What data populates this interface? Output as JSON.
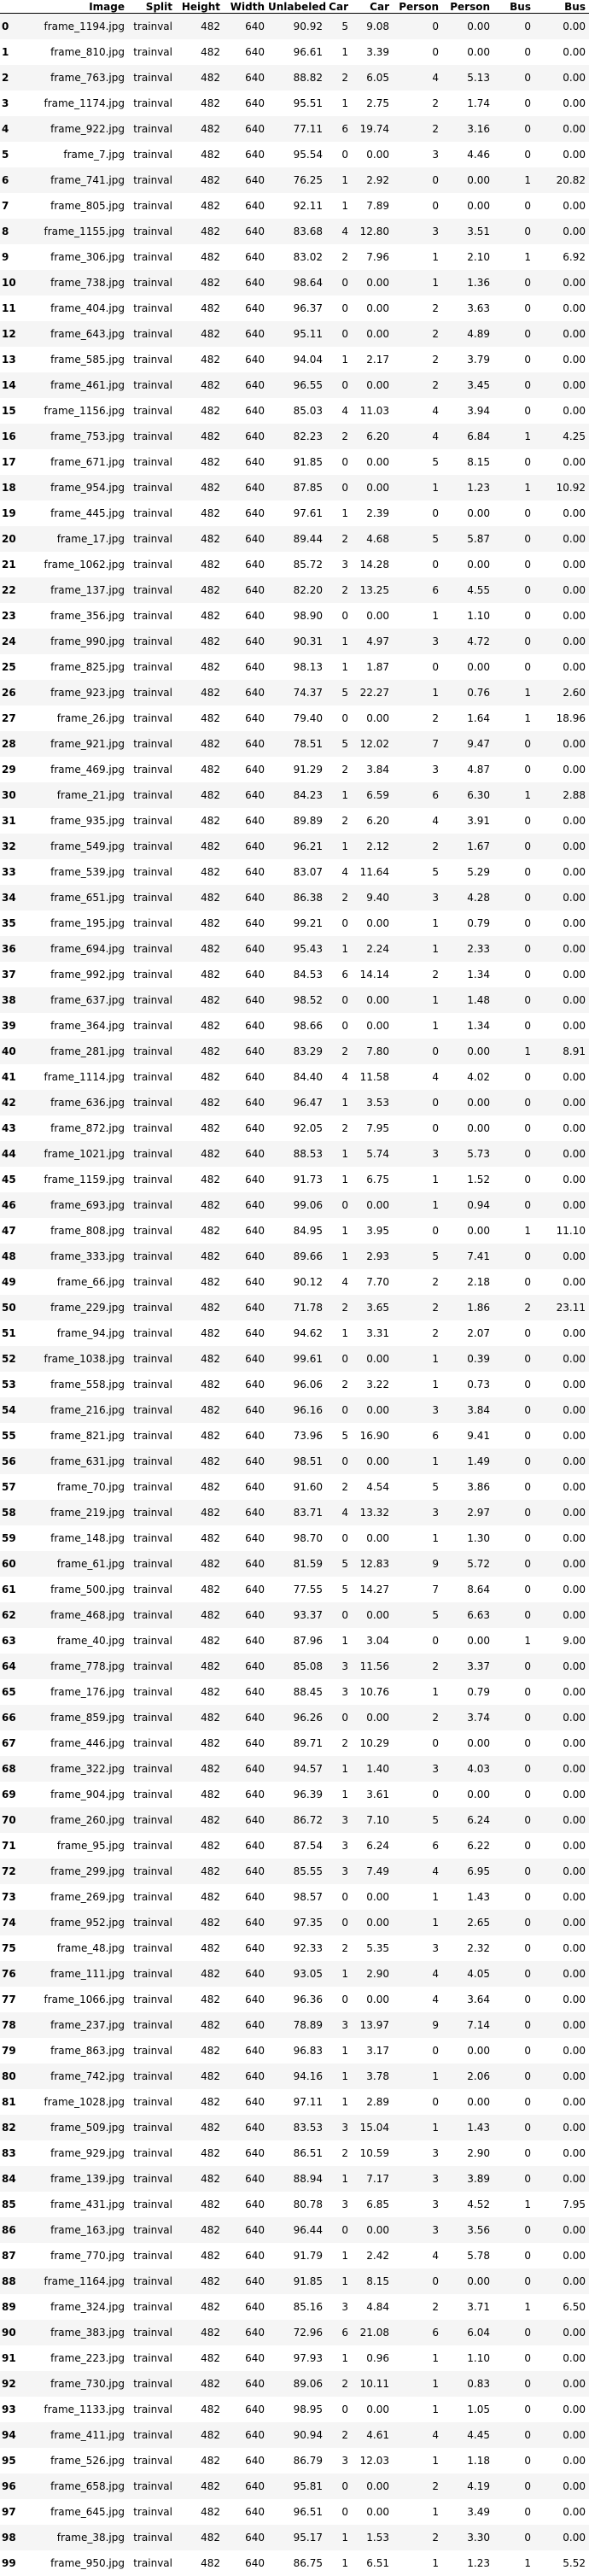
{
  "columns": [
    "Image",
    "Split",
    "Height",
    "Width",
    "Unlabeled",
    "Car",
    "Car",
    "Person",
    "Person",
    "Bus",
    "Bus"
  ],
  "rows": [
    [
      "0",
      "frame_1194.jpg",
      "trainval",
      "482",
      "640",
      "90.92",
      "5",
      "9.08",
      "0",
      "0.00",
      "0",
      "0.00"
    ],
    [
      "1",
      "frame_810.jpg",
      "trainval",
      "482",
      "640",
      "96.61",
      "1",
      "3.39",
      "0",
      "0.00",
      "0",
      "0.00"
    ],
    [
      "2",
      "frame_763.jpg",
      "trainval",
      "482",
      "640",
      "88.82",
      "2",
      "6.05",
      "4",
      "5.13",
      "0",
      "0.00"
    ],
    [
      "3",
      "frame_1174.jpg",
      "trainval",
      "482",
      "640",
      "95.51",
      "1",
      "2.75",
      "2",
      "1.74",
      "0",
      "0.00"
    ],
    [
      "4",
      "frame_922.jpg",
      "trainval",
      "482",
      "640",
      "77.11",
      "6",
      "19.74",
      "2",
      "3.16",
      "0",
      "0.00"
    ],
    [
      "5",
      "frame_7.jpg",
      "trainval",
      "482",
      "640",
      "95.54",
      "0",
      "0.00",
      "3",
      "4.46",
      "0",
      "0.00"
    ],
    [
      "6",
      "frame_741.jpg",
      "trainval",
      "482",
      "640",
      "76.25",
      "1",
      "2.92",
      "0",
      "0.00",
      "1",
      "20.82"
    ],
    [
      "7",
      "frame_805.jpg",
      "trainval",
      "482",
      "640",
      "92.11",
      "1",
      "7.89",
      "0",
      "0.00",
      "0",
      "0.00"
    ],
    [
      "8",
      "frame_1155.jpg",
      "trainval",
      "482",
      "640",
      "83.68",
      "4",
      "12.80",
      "3",
      "3.51",
      "0",
      "0.00"
    ],
    [
      "9",
      "frame_306.jpg",
      "trainval",
      "482",
      "640",
      "83.02",
      "2",
      "7.96",
      "1",
      "2.10",
      "1",
      "6.92"
    ],
    [
      "10",
      "frame_738.jpg",
      "trainval",
      "482",
      "640",
      "98.64",
      "0",
      "0.00",
      "1",
      "1.36",
      "0",
      "0.00"
    ],
    [
      "11",
      "frame_404.jpg",
      "trainval",
      "482",
      "640",
      "96.37",
      "0",
      "0.00",
      "2",
      "3.63",
      "0",
      "0.00"
    ],
    [
      "12",
      "frame_643.jpg",
      "trainval",
      "482",
      "640",
      "95.11",
      "0",
      "0.00",
      "2",
      "4.89",
      "0",
      "0.00"
    ],
    [
      "13",
      "frame_585.jpg",
      "trainval",
      "482",
      "640",
      "94.04",
      "1",
      "2.17",
      "2",
      "3.79",
      "0",
      "0.00"
    ],
    [
      "14",
      "frame_461.jpg",
      "trainval",
      "482",
      "640",
      "96.55",
      "0",
      "0.00",
      "2",
      "3.45",
      "0",
      "0.00"
    ],
    [
      "15",
      "frame_1156.jpg",
      "trainval",
      "482",
      "640",
      "85.03",
      "4",
      "11.03",
      "4",
      "3.94",
      "0",
      "0.00"
    ],
    [
      "16",
      "frame_753.jpg",
      "trainval",
      "482",
      "640",
      "82.23",
      "2",
      "6.20",
      "4",
      "6.84",
      "1",
      "4.25"
    ],
    [
      "17",
      "frame_671.jpg",
      "trainval",
      "482",
      "640",
      "91.85",
      "0",
      "0.00",
      "5",
      "8.15",
      "0",
      "0.00"
    ],
    [
      "18",
      "frame_954.jpg",
      "trainval",
      "482",
      "640",
      "87.85",
      "0",
      "0.00",
      "1",
      "1.23",
      "1",
      "10.92"
    ],
    [
      "19",
      "frame_445.jpg",
      "trainval",
      "482",
      "640",
      "97.61",
      "1",
      "2.39",
      "0",
      "0.00",
      "0",
      "0.00"
    ],
    [
      "20",
      "frame_17.jpg",
      "trainval",
      "482",
      "640",
      "89.44",
      "2",
      "4.68",
      "5",
      "5.87",
      "0",
      "0.00"
    ],
    [
      "21",
      "frame_1062.jpg",
      "trainval",
      "482",
      "640",
      "85.72",
      "3",
      "14.28",
      "0",
      "0.00",
      "0",
      "0.00"
    ],
    [
      "22",
      "frame_137.jpg",
      "trainval",
      "482",
      "640",
      "82.20",
      "2",
      "13.25",
      "6",
      "4.55",
      "0",
      "0.00"
    ],
    [
      "23",
      "frame_356.jpg",
      "trainval",
      "482",
      "640",
      "98.90",
      "0",
      "0.00",
      "1",
      "1.10",
      "0",
      "0.00"
    ],
    [
      "24",
      "frame_990.jpg",
      "trainval",
      "482",
      "640",
      "90.31",
      "1",
      "4.97",
      "3",
      "4.72",
      "0",
      "0.00"
    ],
    [
      "25",
      "frame_825.jpg",
      "trainval",
      "482",
      "640",
      "98.13",
      "1",
      "1.87",
      "0",
      "0.00",
      "0",
      "0.00"
    ],
    [
      "26",
      "frame_923.jpg",
      "trainval",
      "482",
      "640",
      "74.37",
      "5",
      "22.27",
      "1",
      "0.76",
      "1",
      "2.60"
    ],
    [
      "27",
      "frame_26.jpg",
      "trainval",
      "482",
      "640",
      "79.40",
      "0",
      "0.00",
      "2",
      "1.64",
      "1",
      "18.96"
    ],
    [
      "28",
      "frame_921.jpg",
      "trainval",
      "482",
      "640",
      "78.51",
      "5",
      "12.02",
      "7",
      "9.47",
      "0",
      "0.00"
    ],
    [
      "29",
      "frame_469.jpg",
      "trainval",
      "482",
      "640",
      "91.29",
      "2",
      "3.84",
      "3",
      "4.87",
      "0",
      "0.00"
    ],
    [
      "30",
      "frame_21.jpg",
      "trainval",
      "482",
      "640",
      "84.23",
      "1",
      "6.59",
      "6",
      "6.30",
      "1",
      "2.88"
    ],
    [
      "31",
      "frame_935.jpg",
      "trainval",
      "482",
      "640",
      "89.89",
      "2",
      "6.20",
      "4",
      "3.91",
      "0",
      "0.00"
    ],
    [
      "32",
      "frame_549.jpg",
      "trainval",
      "482",
      "640",
      "96.21",
      "1",
      "2.12",
      "2",
      "1.67",
      "0",
      "0.00"
    ],
    [
      "33",
      "frame_539.jpg",
      "trainval",
      "482",
      "640",
      "83.07",
      "4",
      "11.64",
      "5",
      "5.29",
      "0",
      "0.00"
    ],
    [
      "34",
      "frame_651.jpg",
      "trainval",
      "482",
      "640",
      "86.38",
      "2",
      "9.40",
      "3",
      "4.28",
      "0",
      "0.00"
    ],
    [
      "35",
      "frame_195.jpg",
      "trainval",
      "482",
      "640",
      "99.21",
      "0",
      "0.00",
      "1",
      "0.79",
      "0",
      "0.00"
    ],
    [
      "36",
      "frame_694.jpg",
      "trainval",
      "482",
      "640",
      "95.43",
      "1",
      "2.24",
      "1",
      "2.33",
      "0",
      "0.00"
    ],
    [
      "37",
      "frame_992.jpg",
      "trainval",
      "482",
      "640",
      "84.53",
      "6",
      "14.14",
      "2",
      "1.34",
      "0",
      "0.00"
    ],
    [
      "38",
      "frame_637.jpg",
      "trainval",
      "482",
      "640",
      "98.52",
      "0",
      "0.00",
      "1",
      "1.48",
      "0",
      "0.00"
    ],
    [
      "39",
      "frame_364.jpg",
      "trainval",
      "482",
      "640",
      "98.66",
      "0",
      "0.00",
      "1",
      "1.34",
      "0",
      "0.00"
    ],
    [
      "40",
      "frame_281.jpg",
      "trainval",
      "482",
      "640",
      "83.29",
      "2",
      "7.80",
      "0",
      "0.00",
      "1",
      "8.91"
    ],
    [
      "41",
      "frame_1114.jpg",
      "trainval",
      "482",
      "640",
      "84.40",
      "4",
      "11.58",
      "4",
      "4.02",
      "0",
      "0.00"
    ],
    [
      "42",
      "frame_636.jpg",
      "trainval",
      "482",
      "640",
      "96.47",
      "1",
      "3.53",
      "0",
      "0.00",
      "0",
      "0.00"
    ],
    [
      "43",
      "frame_872.jpg",
      "trainval",
      "482",
      "640",
      "92.05",
      "2",
      "7.95",
      "0",
      "0.00",
      "0",
      "0.00"
    ],
    [
      "44",
      "frame_1021.jpg",
      "trainval",
      "482",
      "640",
      "88.53",
      "1",
      "5.74",
      "3",
      "5.73",
      "0",
      "0.00"
    ],
    [
      "45",
      "frame_1159.jpg",
      "trainval",
      "482",
      "640",
      "91.73",
      "1",
      "6.75",
      "1",
      "1.52",
      "0",
      "0.00"
    ],
    [
      "46",
      "frame_693.jpg",
      "trainval",
      "482",
      "640",
      "99.06",
      "0",
      "0.00",
      "1",
      "0.94",
      "0",
      "0.00"
    ],
    [
      "47",
      "frame_808.jpg",
      "trainval",
      "482",
      "640",
      "84.95",
      "1",
      "3.95",
      "0",
      "0.00",
      "1",
      "11.10"
    ],
    [
      "48",
      "frame_333.jpg",
      "trainval",
      "482",
      "640",
      "89.66",
      "1",
      "2.93",
      "5",
      "7.41",
      "0",
      "0.00"
    ],
    [
      "49",
      "frame_66.jpg",
      "trainval",
      "482",
      "640",
      "90.12",
      "4",
      "7.70",
      "2",
      "2.18",
      "0",
      "0.00"
    ],
    [
      "50",
      "frame_229.jpg",
      "trainval",
      "482",
      "640",
      "71.78",
      "2",
      "3.65",
      "2",
      "1.86",
      "2",
      "23.11"
    ],
    [
      "51",
      "frame_94.jpg",
      "trainval",
      "482",
      "640",
      "94.62",
      "1",
      "3.31",
      "2",
      "2.07",
      "0",
      "0.00"
    ],
    [
      "52",
      "frame_1038.jpg",
      "trainval",
      "482",
      "640",
      "99.61",
      "0",
      "0.00",
      "1",
      "0.39",
      "0",
      "0.00"
    ],
    [
      "53",
      "frame_558.jpg",
      "trainval",
      "482",
      "640",
      "96.06",
      "2",
      "3.22",
      "1",
      "0.73",
      "0",
      "0.00"
    ],
    [
      "54",
      "frame_216.jpg",
      "trainval",
      "482",
      "640",
      "96.16",
      "0",
      "0.00",
      "3",
      "3.84",
      "0",
      "0.00"
    ],
    [
      "55",
      "frame_821.jpg",
      "trainval",
      "482",
      "640",
      "73.96",
      "5",
      "16.90",
      "6",
      "9.41",
      "0",
      "0.00"
    ],
    [
      "56",
      "frame_631.jpg",
      "trainval",
      "482",
      "640",
      "98.51",
      "0",
      "0.00",
      "1",
      "1.49",
      "0",
      "0.00"
    ],
    [
      "57",
      "frame_70.jpg",
      "trainval",
      "482",
      "640",
      "91.60",
      "2",
      "4.54",
      "5",
      "3.86",
      "0",
      "0.00"
    ],
    [
      "58",
      "frame_219.jpg",
      "trainval",
      "482",
      "640",
      "83.71",
      "4",
      "13.32",
      "3",
      "2.97",
      "0",
      "0.00"
    ],
    [
      "59",
      "frame_148.jpg",
      "trainval",
      "482",
      "640",
      "98.70",
      "0",
      "0.00",
      "1",
      "1.30",
      "0",
      "0.00"
    ],
    [
      "60",
      "frame_61.jpg",
      "trainval",
      "482",
      "640",
      "81.59",
      "5",
      "12.83",
      "9",
      "5.72",
      "0",
      "0.00"
    ],
    [
      "61",
      "frame_500.jpg",
      "trainval",
      "482",
      "640",
      "77.55",
      "5",
      "14.27",
      "7",
      "8.64",
      "0",
      "0.00"
    ],
    [
      "62",
      "frame_468.jpg",
      "trainval",
      "482",
      "640",
      "93.37",
      "0",
      "0.00",
      "5",
      "6.63",
      "0",
      "0.00"
    ],
    [
      "63",
      "frame_40.jpg",
      "trainval",
      "482",
      "640",
      "87.96",
      "1",
      "3.04",
      "0",
      "0.00",
      "1",
      "9.00"
    ],
    [
      "64",
      "frame_778.jpg",
      "trainval",
      "482",
      "640",
      "85.08",
      "3",
      "11.56",
      "2",
      "3.37",
      "0",
      "0.00"
    ],
    [
      "65",
      "frame_176.jpg",
      "trainval",
      "482",
      "640",
      "88.45",
      "3",
      "10.76",
      "1",
      "0.79",
      "0",
      "0.00"
    ],
    [
      "66",
      "frame_859.jpg",
      "trainval",
      "482",
      "640",
      "96.26",
      "0",
      "0.00",
      "2",
      "3.74",
      "0",
      "0.00"
    ],
    [
      "67",
      "frame_446.jpg",
      "trainval",
      "482",
      "640",
      "89.71",
      "2",
      "10.29",
      "0",
      "0.00",
      "0",
      "0.00"
    ],
    [
      "68",
      "frame_322.jpg",
      "trainval",
      "482",
      "640",
      "94.57",
      "1",
      "1.40",
      "3",
      "4.03",
      "0",
      "0.00"
    ],
    [
      "69",
      "frame_904.jpg",
      "trainval",
      "482",
      "640",
      "96.39",
      "1",
      "3.61",
      "0",
      "0.00",
      "0",
      "0.00"
    ],
    [
      "70",
      "frame_260.jpg",
      "trainval",
      "482",
      "640",
      "86.72",
      "3",
      "7.10",
      "5",
      "6.24",
      "0",
      "0.00"
    ],
    [
      "71",
      "frame_95.jpg",
      "trainval",
      "482",
      "640",
      "87.54",
      "3",
      "6.24",
      "6",
      "6.22",
      "0",
      "0.00"
    ],
    [
      "72",
      "frame_299.jpg",
      "trainval",
      "482",
      "640",
      "85.55",
      "3",
      "7.49",
      "4",
      "6.95",
      "0",
      "0.00"
    ],
    [
      "73",
      "frame_269.jpg",
      "trainval",
      "482",
      "640",
      "98.57",
      "0",
      "0.00",
      "1",
      "1.43",
      "0",
      "0.00"
    ],
    [
      "74",
      "frame_952.jpg",
      "trainval",
      "482",
      "640",
      "97.35",
      "0",
      "0.00",
      "1",
      "2.65",
      "0",
      "0.00"
    ],
    [
      "75",
      "frame_48.jpg",
      "trainval",
      "482",
      "640",
      "92.33",
      "2",
      "5.35",
      "3",
      "2.32",
      "0",
      "0.00"
    ],
    [
      "76",
      "frame_111.jpg",
      "trainval",
      "482",
      "640",
      "93.05",
      "1",
      "2.90",
      "4",
      "4.05",
      "0",
      "0.00"
    ],
    [
      "77",
      "frame_1066.jpg",
      "trainval",
      "482",
      "640",
      "96.36",
      "0",
      "0.00",
      "4",
      "3.64",
      "0",
      "0.00"
    ],
    [
      "78",
      "frame_237.jpg",
      "trainval",
      "482",
      "640",
      "78.89",
      "3",
      "13.97",
      "9",
      "7.14",
      "0",
      "0.00"
    ],
    [
      "79",
      "frame_863.jpg",
      "trainval",
      "482",
      "640",
      "96.83",
      "1",
      "3.17",
      "0",
      "0.00",
      "0",
      "0.00"
    ],
    [
      "80",
      "frame_742.jpg",
      "trainval",
      "482",
      "640",
      "94.16",
      "1",
      "3.78",
      "1",
      "2.06",
      "0",
      "0.00"
    ],
    [
      "81",
      "frame_1028.jpg",
      "trainval",
      "482",
      "640",
      "97.11",
      "1",
      "2.89",
      "0",
      "0.00",
      "0",
      "0.00"
    ],
    [
      "82",
      "frame_509.jpg",
      "trainval",
      "482",
      "640",
      "83.53",
      "3",
      "15.04",
      "1",
      "1.43",
      "0",
      "0.00"
    ],
    [
      "83",
      "frame_929.jpg",
      "trainval",
      "482",
      "640",
      "86.51",
      "2",
      "10.59",
      "3",
      "2.90",
      "0",
      "0.00"
    ],
    [
      "84",
      "frame_139.jpg",
      "trainval",
      "482",
      "640",
      "88.94",
      "1",
      "7.17",
      "3",
      "3.89",
      "0",
      "0.00"
    ],
    [
      "85",
      "frame_431.jpg",
      "trainval",
      "482",
      "640",
      "80.78",
      "3",
      "6.85",
      "3",
      "4.52",
      "1",
      "7.95"
    ],
    [
      "86",
      "frame_163.jpg",
      "trainval",
      "482",
      "640",
      "96.44",
      "0",
      "0.00",
      "3",
      "3.56",
      "0",
      "0.00"
    ],
    [
      "87",
      "frame_770.jpg",
      "trainval",
      "482",
      "640",
      "91.79",
      "1",
      "2.42",
      "4",
      "5.78",
      "0",
      "0.00"
    ],
    [
      "88",
      "frame_1164.jpg",
      "trainval",
      "482",
      "640",
      "91.85",
      "1",
      "8.15",
      "0",
      "0.00",
      "0",
      "0.00"
    ],
    [
      "89",
      "frame_324.jpg",
      "trainval",
      "482",
      "640",
      "85.16",
      "3",
      "4.84",
      "2",
      "3.71",
      "1",
      "6.50"
    ],
    [
      "90",
      "frame_383.jpg",
      "trainval",
      "482",
      "640",
      "72.96",
      "6",
      "21.08",
      "6",
      "6.04",
      "0",
      "0.00"
    ],
    [
      "91",
      "frame_223.jpg",
      "trainval",
      "482",
      "640",
      "97.93",
      "1",
      "0.96",
      "1",
      "1.10",
      "0",
      "0.00"
    ],
    [
      "92",
      "frame_730.jpg",
      "trainval",
      "482",
      "640",
      "89.06",
      "2",
      "10.11",
      "1",
      "0.83",
      "0",
      "0.00"
    ],
    [
      "93",
      "frame_1133.jpg",
      "trainval",
      "482",
      "640",
      "98.95",
      "0",
      "0.00",
      "1",
      "1.05",
      "0",
      "0.00"
    ],
    [
      "94",
      "frame_411.jpg",
      "trainval",
      "482",
      "640",
      "90.94",
      "2",
      "4.61",
      "4",
      "4.45",
      "0",
      "0.00"
    ],
    [
      "95",
      "frame_526.jpg",
      "trainval",
      "482",
      "640",
      "86.79",
      "3",
      "12.03",
      "1",
      "1.18",
      "0",
      "0.00"
    ],
    [
      "96",
      "frame_658.jpg",
      "trainval",
      "482",
      "640",
      "95.81",
      "0",
      "0.00",
      "2",
      "4.19",
      "0",
      "0.00"
    ],
    [
      "97",
      "frame_645.jpg",
      "trainval",
      "482",
      "640",
      "96.51",
      "0",
      "0.00",
      "1",
      "3.49",
      "0",
      "0.00"
    ],
    [
      "98",
      "frame_38.jpg",
      "trainval",
      "482",
      "640",
      "95.17",
      "1",
      "1.53",
      "2",
      "3.30",
      "0",
      "0.00"
    ],
    [
      "99",
      "frame_950.jpg",
      "trainval",
      "482",
      "640",
      "86.75",
      "1",
      "6.51",
      "1",
      "1.23",
      "1",
      "5.52"
    ]
  ]
}
